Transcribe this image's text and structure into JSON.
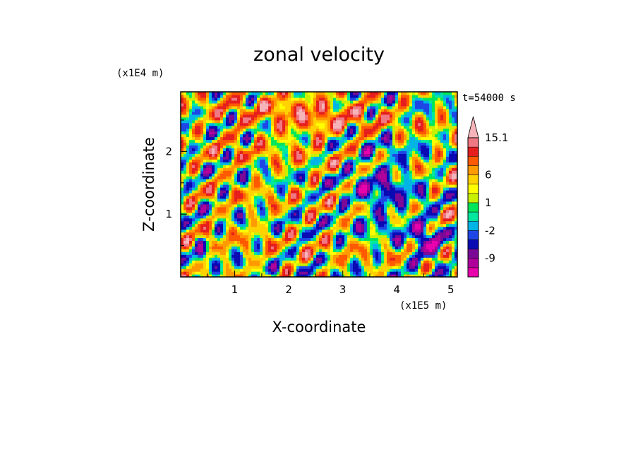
{
  "chart_data": {
    "type": "heatmap",
    "title": "zonal velocity",
    "xlabel": "X-coordinate",
    "ylabel": "Z-coordinate",
    "x_scale_label": "(x1E5 m)",
    "y_scale_label": "(x1E4 m)",
    "time_label": "t=54000 s",
    "xlim": [
      0,
      5.12
    ],
    "ylim": [
      0,
      2.95
    ],
    "x_ticks": [
      1,
      2,
      3,
      4,
      5
    ],
    "y_ticks": [
      1,
      2
    ],
    "x_tick_labels": [
      "1",
      "2",
      "3",
      "4",
      "5"
    ],
    "y_tick_labels": [
      "1",
      "2"
    ],
    "colorbar": {
      "levels": [
        -15,
        -12,
        -9,
        -6,
        -4,
        -2,
        -1,
        0,
        1,
        2,
        4,
        6,
        9,
        12,
        15.1
      ],
      "colors": [
        "#e800ac",
        "#b0009c",
        "#7a0a96",
        "#0a0ab4",
        "#1e46e6",
        "#00b4e6",
        "#00e8a0",
        "#00e65a",
        "#c8f000",
        "#ffff00",
        "#ffd200",
        "#ff9b00",
        "#ff5a00",
        "#e61e1e",
        "#f07882",
        "#f5b4b9"
      ],
      "tick_labels": [
        {
          "text": "15.1",
          "value": 15.1
        },
        {
          "text": "6",
          "value": 6
        },
        {
          "text": "1",
          "value": 1
        },
        {
          "text": "-2",
          "value": -2
        },
        {
          "text": "-9",
          "value": -9
        }
      ]
    },
    "grid": false
  }
}
